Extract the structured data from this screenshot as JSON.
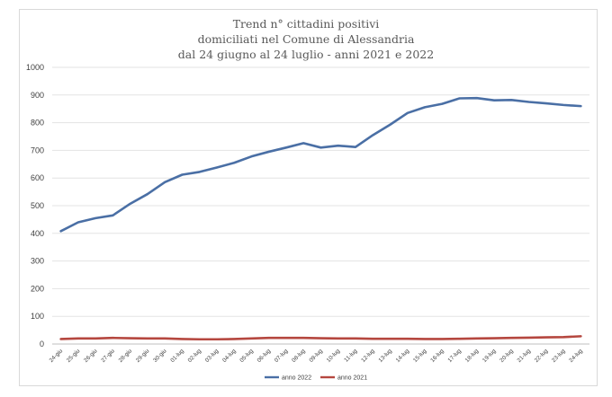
{
  "chart_data": {
    "type": "line",
    "title": [
      "Trend n° cittadini positivi",
      "domiciliati nel Comune di Alessandria",
      "dal 24 giugno al 24 luglio - anni 2021 e 2022"
    ],
    "xlabel": "",
    "ylabel": "",
    "ylim": [
      0,
      1000
    ],
    "yticks": [
      0,
      100,
      200,
      300,
      400,
      500,
      600,
      700,
      800,
      900,
      1000
    ],
    "grid": true,
    "legend_position": "bottom",
    "categories": [
      "24-giu",
      "25-giu",
      "26-giu",
      "27-giu",
      "28-giu",
      "29-giu",
      "30-giu",
      "01-lug",
      "02-lug",
      "03-lug",
      "04-lug",
      "05-lug",
      "06-lug",
      "07-lug",
      "08-lug",
      "09-lug",
      "10-lug",
      "11-lug",
      "12-lug",
      "13-lug",
      "14-lug",
      "15-lug",
      "16-lug",
      "17-lug",
      "18-lug",
      "19-lug",
      "20-lug",
      "21-lug",
      "22-lug",
      "23-lug",
      "24-lug"
    ],
    "series": [
      {
        "name": "anno 2022",
        "color": "#4a6fa5",
        "values": [
          408,
          440,
          455,
          465,
          507,
          542,
          585,
          612,
          622,
          638,
          655,
          678,
          695,
          710,
          726,
          710,
          717,
          712,
          755,
          793,
          835,
          856,
          868,
          888,
          889,
          881,
          882,
          875,
          870,
          864,
          860
        ]
      },
      {
        "name": "anno 2021",
        "color": "#b5473f",
        "values": [
          18,
          20,
          20,
          22,
          21,
          20,
          20,
          18,
          17,
          17,
          18,
          20,
          22,
          22,
          22,
          21,
          20,
          20,
          19,
          19,
          19,
          18,
          18,
          19,
          20,
          21,
          22,
          23,
          24,
          25,
          28
        ]
      }
    ]
  }
}
